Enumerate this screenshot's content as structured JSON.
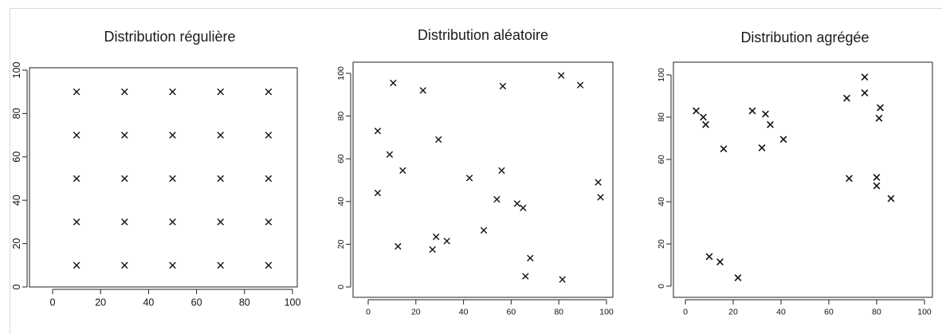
{
  "chart_data": [
    {
      "type": "scatter",
      "title": "Distribution régulière",
      "xlabel": "",
      "ylabel": "",
      "xlim": [
        0,
        100
      ],
      "ylim": [
        0,
        100
      ],
      "xticks": [
        "0",
        "20",
        "40",
        "60",
        "80",
        "100"
      ],
      "yticks": [
        "0",
        "20",
        "40",
        "60",
        "80",
        "100"
      ],
      "marker": "x",
      "grid": false,
      "points": [
        [
          10,
          90
        ],
        [
          30,
          90
        ],
        [
          50,
          90
        ],
        [
          70,
          90
        ],
        [
          90,
          90
        ],
        [
          10,
          70
        ],
        [
          30,
          70
        ],
        [
          50,
          70
        ],
        [
          70,
          70
        ],
        [
          90,
          70
        ],
        [
          10,
          50
        ],
        [
          30,
          50
        ],
        [
          50,
          50
        ],
        [
          70,
          50
        ],
        [
          90,
          50
        ],
        [
          10,
          30
        ],
        [
          30,
          30
        ],
        [
          50,
          30
        ],
        [
          70,
          30
        ],
        [
          90,
          30
        ],
        [
          10,
          10
        ],
        [
          30,
          10
        ],
        [
          50,
          10
        ],
        [
          70,
          10
        ],
        [
          90,
          10
        ]
      ]
    },
    {
      "type": "scatter",
      "title": "Distribution aléatoire",
      "xlabel": "",
      "ylabel": "",
      "xlim": [
        0,
        100
      ],
      "ylim": [
        0,
        100
      ],
      "xticks": [
        "0",
        "20",
        "40",
        "60",
        "80",
        "100"
      ],
      "yticks": [
        "0",
        "20",
        "40",
        "60",
        "80",
        "100"
      ],
      "marker": "x",
      "grid": false,
      "points": [
        [
          10.5,
          95.5
        ],
        [
          23,
          92
        ],
        [
          56.5,
          94
        ],
        [
          81,
          99
        ],
        [
          89,
          94.5
        ],
        [
          4,
          73
        ],
        [
          29.5,
          69
        ],
        [
          9,
          62
        ],
        [
          14.5,
          54.5
        ],
        [
          4,
          44
        ],
        [
          42.5,
          51
        ],
        [
          56,
          54.5
        ],
        [
          54,
          41
        ],
        [
          62.5,
          39
        ],
        [
          65,
          37
        ],
        [
          96.5,
          49
        ],
        [
          97.5,
          42
        ],
        [
          12.5,
          19
        ],
        [
          27,
          17.5
        ],
        [
          28.5,
          23.5
        ],
        [
          33,
          21.5
        ],
        [
          48.5,
          26.5
        ],
        [
          68,
          13.5
        ],
        [
          66,
          5
        ],
        [
          81.5,
          3.5
        ]
      ]
    },
    {
      "type": "scatter",
      "title": "Distribution agrégée",
      "xlabel": "",
      "ylabel": "",
      "xlim": [
        0,
        100
      ],
      "ylim": [
        0,
        100
      ],
      "xticks": [
        "0",
        "20",
        "40",
        "60",
        "80",
        "100"
      ],
      "yticks": [
        "0",
        "20",
        "40",
        "60",
        "80",
        "100"
      ],
      "marker": "x",
      "grid": false,
      "points": [
        [
          4.5,
          83
        ],
        [
          7.5,
          80
        ],
        [
          8.5,
          76.5
        ],
        [
          16,
          65
        ],
        [
          28,
          83
        ],
        [
          33.5,
          81.5
        ],
        [
          35.5,
          76.5
        ],
        [
          32,
          65.5
        ],
        [
          41,
          69.5
        ],
        [
          75,
          99
        ],
        [
          67.5,
          89
        ],
        [
          75,
          91.5
        ],
        [
          81.5,
          84.5
        ],
        [
          81,
          79.5
        ],
        [
          68.5,
          51
        ],
        [
          80,
          51.5
        ],
        [
          80,
          47.5
        ],
        [
          86,
          41.5
        ],
        [
          10,
          14
        ],
        [
          14.5,
          11.5
        ],
        [
          22,
          4
        ]
      ]
    }
  ]
}
